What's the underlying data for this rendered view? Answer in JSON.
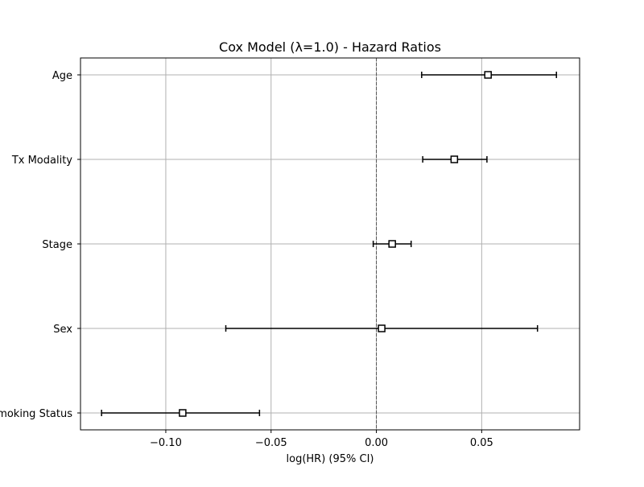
{
  "chart_data": {
    "type": "forest",
    "title": "Cox Model (λ=1.0) - Hazard Ratios",
    "xlabel": "log(HR) (95% CI)",
    "ylabel": "",
    "xlim": [
      -0.1405,
      0.0965
    ],
    "x_ticks": [
      {
        "value": -0.1,
        "label": "−0.10"
      },
      {
        "value": -0.05,
        "label": "−0.05"
      },
      {
        "value": 0.0,
        "label": "0.00"
      },
      {
        "value": 0.05,
        "label": "0.05"
      }
    ],
    "grid": true,
    "reference_line": {
      "value": 0.0,
      "style": "dashed"
    },
    "covariates": [
      {
        "name": "Age",
        "coef": 0.053,
        "lower": 0.0215,
        "upper": 0.0855
      },
      {
        "name": "Tx Modality",
        "coef": 0.037,
        "lower": 0.022,
        "upper": 0.0525
      },
      {
        "name": "Stage",
        "coef": 0.0075,
        "lower": -0.0015,
        "upper": 0.0165
      },
      {
        "name": "Sex",
        "coef": 0.0025,
        "lower": -0.0715,
        "upper": 0.0765
      },
      {
        "name": "Smoking Status",
        "coef": -0.092,
        "lower": -0.1305,
        "upper": -0.0555
      }
    ],
    "colors": {
      "marker_edge": "#000000",
      "marker_face": "#ffffff",
      "grid": "#b0b0b0",
      "reference": "#555555",
      "axes": "#000000"
    }
  }
}
